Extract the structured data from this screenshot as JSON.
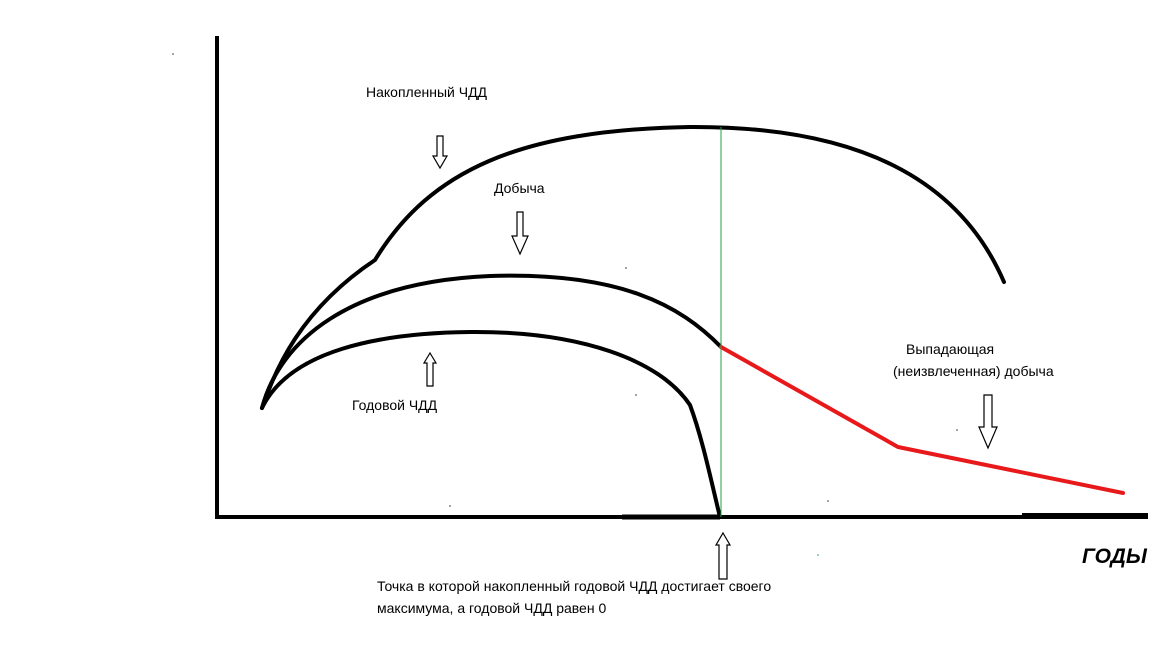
{
  "labels": {
    "cumulative_npv": "Накопленный ЧДД",
    "production": "Добыча",
    "annual_npv": "Годовой ЧДД",
    "lost_production_line1": "Выпадающая",
    "lost_production_line2": "(неизвлеченная) добыча",
    "annotation_line1": "Точка в которой накопленный годовой ЧДД достигает своего",
    "annotation_line2": "максимума, а годовой ЧДД равен 0"
  },
  "axis": {
    "x_label": "ГОДЫ"
  },
  "colors": {
    "curve": "#000000",
    "lost_production": "#e8191b",
    "marker_line": "#22a04a",
    "arrow_fill": "#ffffff",
    "arrow_stroke": "#000000"
  }
}
